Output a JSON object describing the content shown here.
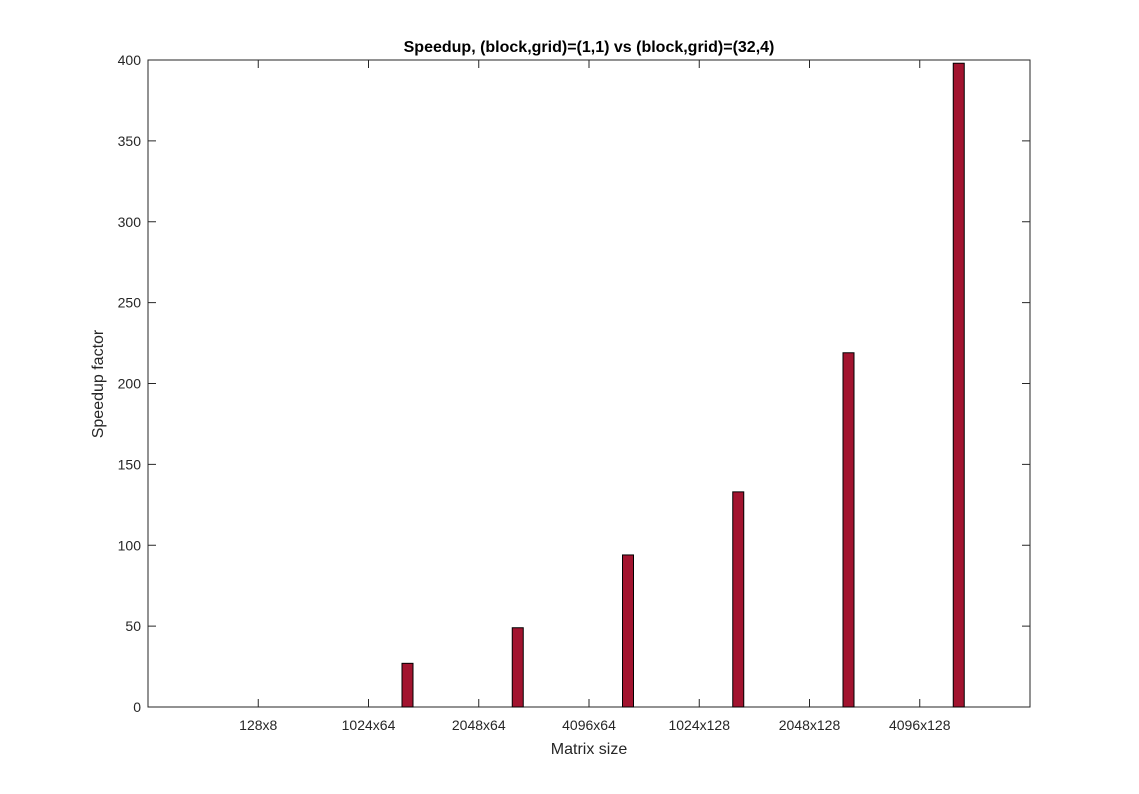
{
  "chart_data": {
    "type": "bar",
    "title": "Speedup, (block,grid)=(1,1) vs (block,grid)=(32,4)",
    "xlabel": "Matrix size",
    "ylabel": "Speedup factor",
    "categories": [
      "128x8",
      "1024x64",
      "2048x64",
      "4096x64",
      "1024x128",
      "2048x128",
      "4096x128"
    ],
    "values": [
      0,
      27,
      49,
      94,
      133,
      219,
      398
    ],
    "ylim": [
      0,
      400
    ],
    "yticks": [
      0,
      50,
      100,
      150,
      200,
      250,
      300,
      350,
      400
    ],
    "bar_color": "#a2142f",
    "grid": false,
    "legend": "none"
  }
}
